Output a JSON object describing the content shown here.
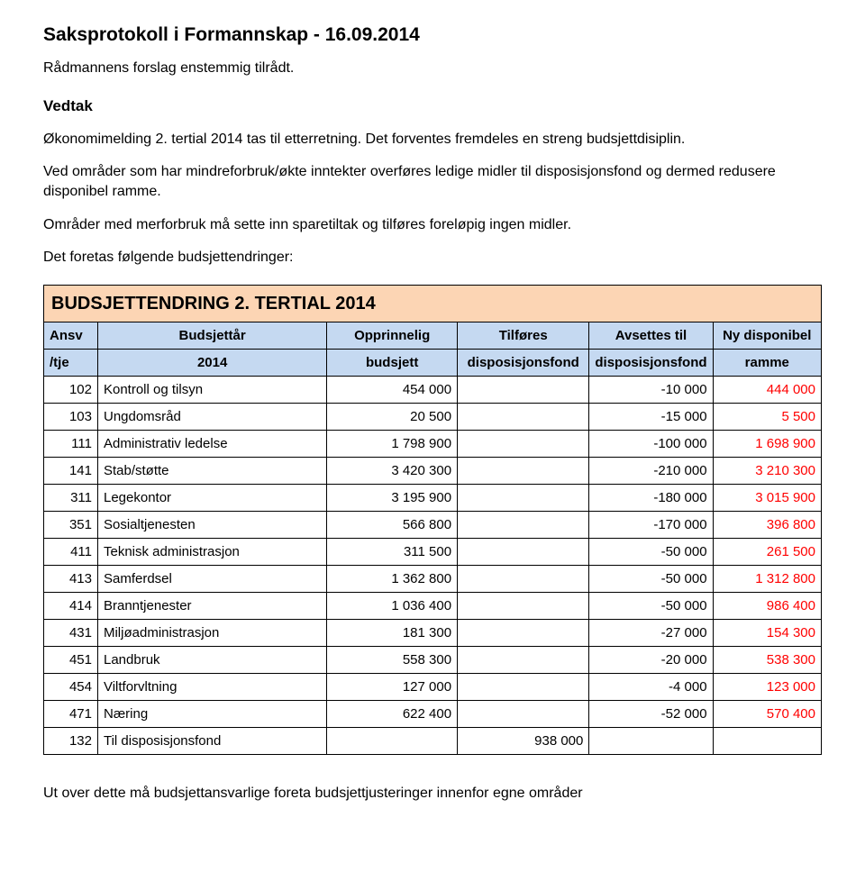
{
  "title": "Saksprotokoll i Formannskap - 16.09.2014",
  "subtitle": "Rådmannens forslag enstemmig tilrådt.",
  "vedtak_label": "Vedtak",
  "para1": "Økonomimelding 2. tertial 2014 tas til etterretning. Det forventes fremdeles en streng budsjettdisiplin.",
  "para2": "Ved områder som har mindreforbruk/økte inntekter overføres ledige midler til disposisjonsfond og dermed redusere disponibel ramme.",
  "para3": "Områder med merforbruk må sette inn sparetiltak og tilføres foreløpig ingen midler.",
  "intro": "Det foretas følgende budsjettendringer:",
  "footer": "Ut over dette må budsjettansvarlige foreta budsjettjusteringer innenfor egne områder",
  "table": {
    "title": "BUDSJETTENDRING 2. TERTIAL 2014",
    "header1": {
      "c0": "Ansv",
      "c1": "Budsjettår",
      "c2": "Opprinnelig",
      "c3": "Tilføres",
      "c4": "Avsettes til",
      "c5": "Ny disponibel"
    },
    "header2": {
      "c0": "/tje",
      "c1": "2014",
      "c2": "budsjett",
      "c3": "disposisjonsfond",
      "c4": "disposisjonsfond",
      "c5": "ramme"
    },
    "colors": {
      "title_bg": "#fcd5b4",
      "header_bg": "#c5d9f1",
      "border": "#000000",
      "text": "#000000",
      "red": "#ff0000"
    },
    "col_widths": [
      "7%",
      "30%",
      "17%",
      "17%",
      "15%",
      "14%"
    ],
    "rows": [
      {
        "code": "102",
        "name": "Kontroll og tilsyn",
        "orig": "454 000",
        "tilf": "",
        "avs": "-10 000",
        "ny": "444 000"
      },
      {
        "code": "103",
        "name": "Ungdomsråd",
        "orig": "20 500",
        "tilf": "",
        "avs": "-15 000",
        "ny": "5 500"
      },
      {
        "code": "111",
        "name": "Administrativ ledelse",
        "orig": "1 798 900",
        "tilf": "",
        "avs": "-100 000",
        "ny": "1 698 900"
      },
      {
        "code": "141",
        "name": "Stab/støtte",
        "orig": "3 420 300",
        "tilf": "",
        "avs": "-210 000",
        "ny": "3 210 300"
      },
      {
        "code": "311",
        "name": "Legekontor",
        "orig": "3 195 900",
        "tilf": "",
        "avs": "-180 000",
        "ny": "3 015 900"
      },
      {
        "code": "351",
        "name": "Sosialtjenesten",
        "orig": "566 800",
        "tilf": "",
        "avs": "-170 000",
        "ny": "396 800"
      },
      {
        "code": "411",
        "name": "Teknisk administrasjon",
        "orig": "311 500",
        "tilf": "",
        "avs": "-50 000",
        "ny": "261 500"
      },
      {
        "code": "413",
        "name": "Samferdsel",
        "orig": "1 362 800",
        "tilf": "",
        "avs": "-50 000",
        "ny": "1 312 800"
      },
      {
        "code": "414",
        "name": "Branntjenester",
        "orig": "1 036 400",
        "tilf": "",
        "avs": "-50 000",
        "ny": "986 400"
      },
      {
        "code": "431",
        "name": "Miljøadministrasjon",
        "orig": "181 300",
        "tilf": "",
        "avs": "-27 000",
        "ny": "154 300"
      },
      {
        "code": "451",
        "name": "Landbruk",
        "orig": "558 300",
        "tilf": "",
        "avs": "-20 000",
        "ny": "538 300"
      },
      {
        "code": "454",
        "name": "Viltforvltning",
        "orig": "127 000",
        "tilf": "",
        "avs": "-4 000",
        "ny": "123 000"
      },
      {
        "code": "471",
        "name": "Næring",
        "orig": "622 400",
        "tilf": "",
        "avs": "-52 000",
        "ny": "570 400"
      },
      {
        "code": "132",
        "name": "Til disposisjonsfond",
        "orig": "",
        "tilf": "938 000",
        "avs": "",
        "ny": ""
      }
    ]
  }
}
